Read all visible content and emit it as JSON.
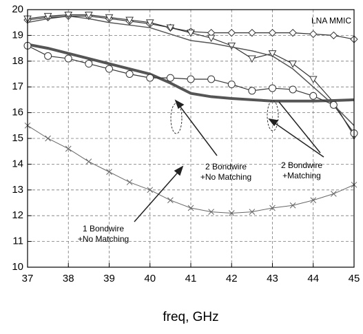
{
  "chart_data": {
    "type": "line",
    "x_label": "freq, GHz",
    "x": [
      37,
      37.5,
      38,
      38.5,
      39,
      39.5,
      40,
      40.5,
      41,
      41.5,
      42,
      42.5,
      43,
      43.5,
      44,
      44.5,
      45
    ],
    "xlim": [
      37,
      45
    ],
    "xticks": [
      37,
      38,
      39,
      40,
      41,
      42,
      43,
      44,
      45
    ],
    "ylim": [
      10,
      20
    ],
    "yticks": [
      10,
      11,
      12,
      13,
      14,
      15,
      16,
      17,
      18,
      19,
      20
    ],
    "grid": true,
    "series": [
      {
        "marker": "diamond",
        "color": "#333333",
        "width": 1.2,
        "values": [
          19.6,
          19.7,
          19.75,
          19.75,
          19.65,
          19.55,
          19.45,
          19.3,
          19.15,
          19.1,
          19.1,
          19.1,
          19.1,
          19.1,
          19.05,
          19.0,
          18.85
        ]
      },
      {
        "marker": "triangle",
        "color": "#333333",
        "width": 1.2,
        "values": [
          19.65,
          19.75,
          19.8,
          19.8,
          19.7,
          19.6,
          19.5,
          19.3,
          19.1,
          18.9,
          18.6,
          18.1,
          18.3,
          17.9,
          17.3,
          16.4,
          15.1
        ]
      },
      {
        "marker": "none",
        "color": "#555555",
        "width": 1.5,
        "values": [
          19.5,
          19.65,
          19.75,
          19.65,
          19.5,
          19.4,
          19.3,
          19.05,
          18.8,
          18.7,
          18.55,
          18.4,
          18.2,
          17.7,
          17.0,
          16.3,
          15.5
        ]
      },
      {
        "marker": "none",
        "color": "#555555",
        "width": 4,
        "values": [
          18.65,
          18.5,
          18.3,
          18.1,
          17.9,
          17.7,
          17.5,
          17.15,
          16.75,
          16.62,
          16.55,
          16.5,
          16.45,
          16.45,
          16.45,
          16.47,
          16.5
        ]
      },
      {
        "marker": "circle",
        "color": "#333333",
        "width": 1.2,
        "values": [
          18.6,
          18.2,
          18.1,
          17.9,
          17.7,
          17.5,
          17.35,
          17.35,
          17.3,
          17.3,
          17.1,
          16.85,
          16.95,
          16.9,
          16.65,
          16.3,
          15.2
        ]
      },
      {
        "marker": "x",
        "color": "#666666",
        "width": 1,
        "values": [
          15.5,
          15.0,
          14.6,
          14.1,
          13.7,
          13.3,
          13.0,
          12.6,
          12.3,
          12.15,
          12.1,
          12.15,
          12.3,
          12.4,
          12.6,
          12.85,
          13.2
        ]
      }
    ],
    "annotations": [
      {
        "lines": [
          "LNA MMIC"
        ]
      },
      {
        "lines": [
          "2 Bondwire",
          "+Matching"
        ]
      },
      {
        "lines": [
          "2 Bondwire",
          "+No Matching"
        ]
      },
      {
        "lines": [
          "1 Bondwire",
          "+No Matching"
        ]
      }
    ]
  }
}
